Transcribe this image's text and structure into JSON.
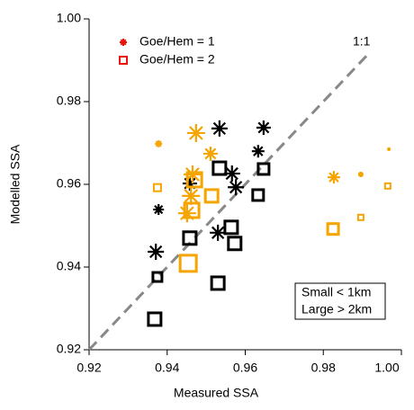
{
  "chart_data": {
    "type": "scatter",
    "xlabel": "Measured SSA",
    "ylabel": "Modelled SSA",
    "xlim": [
      0.92,
      1
    ],
    "ylim": [
      0.92,
      1
    ],
    "xticks": [
      0.92,
      0.94,
      0.96,
      0.98,
      {
        "value": 1,
        "label": "1.00"
      }
    ],
    "yticks": [
      0.92,
      0.94,
      0.96,
      0.98,
      {
        "value": 1,
        "label": "1.00"
      }
    ],
    "legend": "top-left",
    "annotations": [
      "1:1",
      "Small < 1km",
      "Large > 2km"
    ],
    "series": [
      {
        "name": "Goe/Hem = 1",
        "color": "#e8120c",
        "marker": "star",
        "x": [
          0.9378,
          0.9371,
          0.9458,
          0.9534,
          0.953,
          0.9566,
          0.9576,
          0.9633,
          0.9647,
          0.9378,
          0.9474,
          0.9465,
          0.9461,
          0.9451,
          0.9511,
          0.9827,
          0.9896,
          0.9968
        ],
        "values": [
          0.9539,
          0.9437,
          0.9602,
          0.9735,
          0.9483,
          0.9626,
          0.9593,
          0.968,
          0.9737,
          0.9698,
          0.9724,
          0.9624,
          0.9572,
          0.953,
          0.9674,
          0.9617,
          0.9624,
          0.9685
        ],
        "colors": [
          "#000000",
          "#000000",
          "#000000",
          "#000000",
          "#000000",
          "#000000",
          "#000000",
          "#000000",
          "#000000",
          "#f5a400",
          "#f5a400",
          "#f5a400",
          "#f5a400",
          "#f5a400",
          "#f5a400",
          "#f5a400",
          "#f5a400",
          "#f5a400"
        ],
        "marker_sizes": [
          6,
          9,
          8,
          9,
          9,
          9,
          9,
          7,
          8,
          4,
          10,
          10,
          10,
          10,
          8,
          7,
          3,
          2
        ]
      },
      {
        "name": "Goe/Hem = 2",
        "color": "#e8120c",
        "marker": "square",
        "x": [
          0.9368,
          0.9375,
          0.9458,
          0.953,
          0.9534,
          0.9564,
          0.9573,
          0.9633,
          0.9647,
          0.9375,
          0.9454,
          0.9463,
          0.947,
          0.9514,
          0.9825,
          0.9896,
          0.9965
        ],
        "values": [
          0.9274,
          0.9376,
          0.947,
          0.9361,
          0.9639,
          0.9496,
          0.9457,
          0.9574,
          0.9637,
          0.9592,
          0.9409,
          0.9537,
          0.9611,
          0.9572,
          0.9492,
          0.952,
          0.9596
        ],
        "colors": [
          "#000000",
          "#000000",
          "#000000",
          "#000000",
          "#000000",
          "#000000",
          "#000000",
          "#000000",
          "#000000",
          "#f5a400",
          "#f5a400",
          "#f5a400",
          "#f5a400",
          "#f5a400",
          "#f5a400",
          "#f5a400",
          "#f5a400"
        ],
        "marker_sizes": [
          7,
          5,
          7,
          7,
          7,
          7,
          7,
          6,
          6,
          4,
          9,
          8,
          8,
          7,
          6,
          3,
          3
        ]
      }
    ]
  }
}
